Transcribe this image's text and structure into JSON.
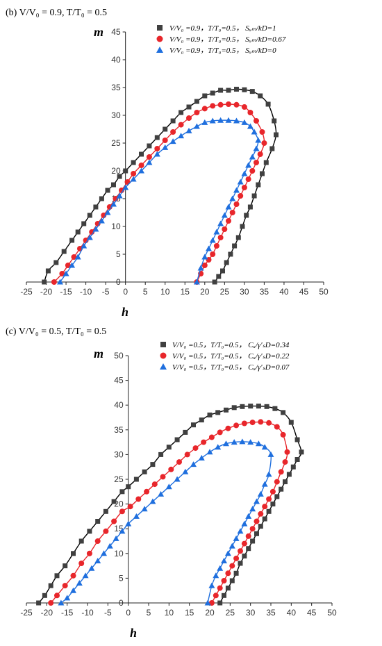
{
  "chart_data": [
    {
      "panel_label": "(b) V/V₀ = 0.9, T/T₀ = 0.5",
      "type": "scatter",
      "xlabel": "h",
      "ylabel": "m",
      "xlim": [
        -25,
        50
      ],
      "ylim": [
        0,
        45
      ],
      "xticks": [
        -25,
        -20,
        -15,
        -10,
        -5,
        0,
        5,
        10,
        15,
        20,
        25,
        30,
        35,
        40,
        45,
        50
      ],
      "yticks": [
        0,
        5,
        10,
        15,
        20,
        25,
        30,
        35,
        40,
        45
      ],
      "legend_position": "top-right",
      "series": [
        {
          "name": "V/V₀ =0.9，T/T₀=0.5， Sᵤₘ/kD=1",
          "marker": "square",
          "color": "#404040",
          "x": [
            -20.5,
            -19.5,
            -17.5,
            -15.5,
            -13.5,
            -12,
            -10.5,
            -9,
            -7.5,
            -6,
            -4.5,
            -3,
            -1.5,
            0,
            2,
            4,
            6,
            8,
            10,
            12,
            14,
            16,
            18,
            20,
            22,
            24,
            26,
            28,
            30,
            32,
            34,
            36,
            37.5,
            38,
            37,
            35.5,
            34.5,
            33.5,
            32.5,
            31.5,
            30.5,
            29.5,
            28.5,
            27.5,
            26.5,
            25.5,
            24.5,
            23.5,
            22.5
          ],
          "y": [
            0,
            2,
            3.5,
            5.5,
            7.5,
            9,
            10.5,
            12,
            13.5,
            15,
            16.5,
            17.5,
            19,
            20,
            21.5,
            23,
            24.5,
            26,
            27.5,
            29,
            30.5,
            31.5,
            32.5,
            33.5,
            34,
            34.5,
            34.5,
            34.7,
            34.6,
            34.3,
            33.5,
            32,
            29,
            26.5,
            24,
            21.5,
            19.5,
            17.5,
            15.5,
            13.5,
            12,
            10,
            8,
            6.5,
            5,
            3.5,
            2,
            1,
            0
          ]
        },
        {
          "name": "V/V₀ =0.9，T/T₀=0.5， Sᵤₘ/kD=0.67",
          "marker": "circle",
          "color": "#e8262b",
          "x": [
            -18,
            -16,
            -14.5,
            -13,
            -11.5,
            -10,
            -8.5,
            -7,
            -5.5,
            -4,
            -2.5,
            -1,
            0.5,
            2,
            4,
            6,
            8,
            10,
            12,
            14,
            16,
            18,
            20,
            22,
            24,
            26,
            28,
            30,
            31.5,
            33,
            34.5,
            35,
            34,
            33,
            32,
            31,
            30,
            29,
            28,
            27,
            26,
            25,
            24,
            23,
            22,
            21,
            20,
            19,
            18
          ],
          "y": [
            0,
            1.5,
            3,
            4.5,
            6,
            7.5,
            9,
            10.5,
            12,
            13.5,
            15,
            16.5,
            18,
            19.5,
            21,
            22.5,
            24,
            25.5,
            27,
            28.3,
            29.5,
            30.5,
            31.2,
            31.7,
            31.9,
            32,
            31.9,
            31.5,
            30.5,
            29,
            27,
            25,
            23,
            21.5,
            20,
            18.5,
            17,
            15.5,
            14,
            12.5,
            11,
            9.5,
            8,
            6.5,
            5,
            4,
            3,
            1.5,
            0
          ]
        },
        {
          "name": "V/V₀ =0.9，T/T₀=0.5， Sᵤₘ/kD=0",
          "marker": "triangle",
          "color": "#1f6fde",
          "x": [
            -16.5,
            -15,
            -13.5,
            -12,
            -10.5,
            -9,
            -7.5,
            -6,
            -4.5,
            -3,
            -1.5,
            0,
            2,
            4,
            6,
            8,
            10,
            12,
            14,
            16,
            18,
            20,
            22,
            24,
            26,
            28,
            30,
            31.5,
            32.5,
            33.5,
            33,
            32,
            31,
            30,
            29,
            28,
            27,
            26,
            25,
            24,
            23,
            22,
            21,
            20,
            19,
            18
          ],
          "y": [
            0,
            1.5,
            3,
            4.5,
            6.5,
            8,
            9.5,
            11,
            12.5,
            14,
            15.5,
            17,
            18.5,
            20,
            21.5,
            23,
            24.2,
            25.3,
            26.3,
            27.2,
            28,
            28.7,
            29,
            29.1,
            29.1,
            29,
            28.7,
            28,
            27,
            25.5,
            24,
            22.5,
            21,
            19.5,
            18,
            16.5,
            15,
            13.5,
            12,
            10.5,
            9,
            7.5,
            6,
            4.5,
            2.5,
            0
          ]
        }
      ]
    },
    {
      "panel_label": "(c) V/V₀ = 0.5, T/T₀ = 0.5",
      "type": "scatter",
      "xlabel": "h",
      "ylabel": "m",
      "xlim": [
        -25,
        50
      ],
      "ylim": [
        0,
        50
      ],
      "xticks": [
        -25,
        -20,
        -15,
        -10,
        -5,
        0,
        5,
        10,
        15,
        20,
        25,
        30,
        35,
        40,
        45,
        50
      ],
      "yticks": [
        0,
        5,
        10,
        15,
        20,
        25,
        30,
        35,
        40,
        45,
        50
      ],
      "legend_position": "top-right",
      "series": [
        {
          "name": "V/V₀ =0.5，T/T₀=0.5， Cᵤ/γ′ₛD=0.34",
          "marker": "square",
          "color": "#404040",
          "x": [
            -22,
            -20.5,
            -19,
            -17.5,
            -15.5,
            -13.5,
            -11.5,
            -9.5,
            -7.5,
            -5.5,
            -3.5,
            -1.5,
            0,
            2,
            4,
            6,
            8,
            10,
            12,
            14,
            16,
            18,
            20,
            22,
            24,
            26,
            28,
            30,
            32,
            34,
            36,
            38,
            40,
            41.5,
            42.5,
            41.5,
            40.5,
            39.5,
            38.5,
            37.5,
            36.5,
            35.5,
            34.5,
            33.5,
            32.5,
            31.5,
            30.5,
            29.5,
            28.5,
            27.5,
            26.5,
            25.5,
            24.5,
            23.5,
            22.5
          ],
          "y": [
            0,
            1.5,
            3.5,
            5.5,
            7.5,
            10,
            12.5,
            14.5,
            16.5,
            18.5,
            20.5,
            22.5,
            23.5,
            25,
            26.5,
            28,
            30,
            31.5,
            33,
            34.5,
            36,
            37,
            38,
            38.5,
            39,
            39.5,
            39.7,
            39.8,
            39.8,
            39.7,
            39.3,
            38.5,
            36.5,
            33,
            30.5,
            29,
            27.5,
            26,
            24.5,
            23,
            21.5,
            20,
            18.5,
            17,
            15.5,
            14,
            12.5,
            11,
            9.5,
            8,
            6,
            4.5,
            3,
            1.5,
            0
          ]
        },
        {
          "name": "V/V₀ =0.5，T/T₀=0.5， Cᵤ/γ′ₛD=0.22",
          "marker": "circle",
          "color": "#e8262b",
          "x": [
            -19,
            -17.5,
            -15.5,
            -13.5,
            -11.5,
            -9.5,
            -7.5,
            -5.5,
            -3.5,
            -1.5,
            0.5,
            2.5,
            4.5,
            6.5,
            8.5,
            10.5,
            12.5,
            14.5,
            16.5,
            18.5,
            20.5,
            22.5,
            24.5,
            26.5,
            28.5,
            30.5,
            32.5,
            34.5,
            36.5,
            38,
            39,
            38.5,
            37.5,
            36.5,
            35.5,
            34.5,
            33.5,
            32.5,
            31.5,
            30.5,
            29.5,
            28.5,
            27.5,
            26.5,
            25.5,
            24.5,
            23.5,
            22.5,
            21.5,
            20.5
          ],
          "y": [
            0,
            1.5,
            3.5,
            5.5,
            8,
            10,
            12.5,
            14.5,
            16.5,
            18.5,
            19.5,
            21,
            22.5,
            24,
            25.5,
            27,
            28.5,
            30,
            31.3,
            32.5,
            33.5,
            34.5,
            35.3,
            35.9,
            36.3,
            36.5,
            36.6,
            36.4,
            35.6,
            34,
            30.5,
            28.5,
            26.5,
            24.5,
            22.5,
            21,
            19.5,
            18,
            16.5,
            15,
            13.5,
            12,
            10.5,
            9,
            7.5,
            6,
            4.5,
            3,
            1.5,
            0
          ]
        },
        {
          "name": "V/V₀ =0.5，T/T₀=0.5， Cᵤ/γ′ₛD=0.07",
          "marker": "triangle",
          "color": "#1f6fde",
          "x": [
            -16.5,
            -15,
            -13.5,
            -12,
            -10.5,
            -9,
            -7.5,
            -6,
            -4.5,
            -3,
            -1.5,
            0,
            2,
            4,
            6,
            8,
            10,
            12,
            14,
            16,
            18,
            20,
            22,
            24,
            26,
            28,
            30,
            32,
            33.5,
            35,
            34.5,
            33.5,
            32.5,
            31.5,
            30.5,
            29.5,
            28.5,
            27.5,
            26.5,
            25.5,
            24.5,
            23.5,
            22.5,
            21.5,
            20.5,
            19.5
          ],
          "y": [
            0,
            1,
            2.5,
            4,
            5.5,
            7,
            8.5,
            10,
            11.5,
            13,
            14.5,
            16,
            17.5,
            19,
            20.5,
            22,
            23.5,
            25,
            26.5,
            28,
            29.3,
            30.5,
            31.5,
            32.2,
            32.5,
            32.6,
            32.5,
            32.2,
            31.5,
            30,
            26,
            24,
            22,
            20.5,
            19,
            17.5,
            16,
            14.5,
            13,
            11.5,
            10,
            8.5,
            7,
            5.5,
            3.5,
            0
          ]
        }
      ]
    }
  ]
}
